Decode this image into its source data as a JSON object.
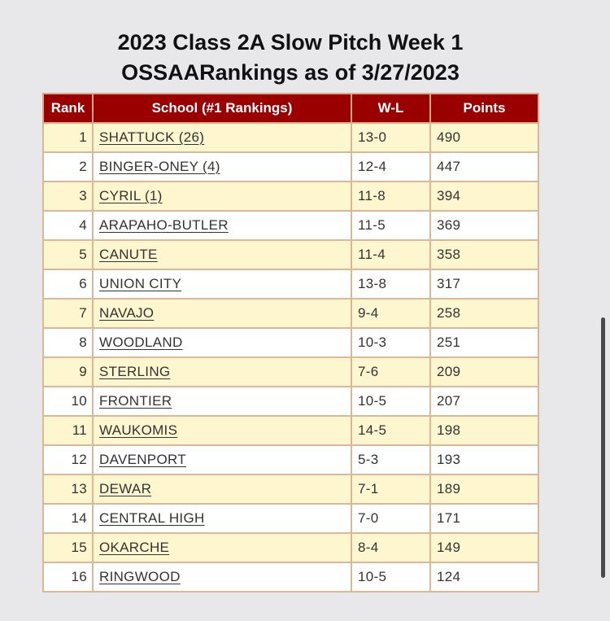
{
  "title": {
    "line1": "2023 Class 2A Slow Pitch Week 1",
    "line2": "OSSAARankings as of 3/27/2023"
  },
  "table": {
    "headers": {
      "rank": "Rank",
      "school": "School (#1 Rankings)",
      "wl": "W-L",
      "points": "Points"
    },
    "rows": [
      {
        "rank": "1",
        "school": "SHATTUCK (26)",
        "wl": "13-0",
        "points": "490"
      },
      {
        "rank": "2",
        "school": "BINGER-ONEY (4)",
        "wl": "12-4",
        "points": "447"
      },
      {
        "rank": "3",
        "school": "CYRIL (1)",
        "wl": "11-8",
        "points": "394"
      },
      {
        "rank": "4",
        "school": "ARAPAHO-BUTLER",
        "wl": "11-5",
        "points": "369"
      },
      {
        "rank": "5",
        "school": "CANUTE",
        "wl": "11-4",
        "points": "358"
      },
      {
        "rank": "6",
        "school": "UNION CITY",
        "wl": "13-8",
        "points": "317"
      },
      {
        "rank": "7",
        "school": "NAVAJO",
        "wl": "9-4",
        "points": "258"
      },
      {
        "rank": "8",
        "school": "WOODLAND",
        "wl": "10-3",
        "points": "251"
      },
      {
        "rank": "9",
        "school": "STERLING",
        "wl": "7-6",
        "points": "209"
      },
      {
        "rank": "10",
        "school": "FRONTIER",
        "wl": "10-5",
        "points": "207"
      },
      {
        "rank": "11",
        "school": "WAUKOMIS",
        "wl": "14-5",
        "points": "198"
      },
      {
        "rank": "12",
        "school": "DAVENPORT",
        "wl": "5-3",
        "points": "193"
      },
      {
        "rank": "13",
        "school": "DEWAR",
        "wl": "7-1",
        "points": "189"
      },
      {
        "rank": "14",
        "school": "CENTRAL HIGH",
        "wl": "7-0",
        "points": "171"
      },
      {
        "rank": "15",
        "school": "OKARCHE",
        "wl": "8-4",
        "points": "149"
      },
      {
        "rank": "16",
        "school": "RINGWOOD",
        "wl": "10-5",
        "points": "124"
      }
    ]
  },
  "colors": {
    "header_bg": "#9b0000",
    "odd_row_bg": "#fdf6cf",
    "even_row_bg": "#ffffff",
    "border": "#d9b89a",
    "page_bg": "#e8e8ea"
  }
}
